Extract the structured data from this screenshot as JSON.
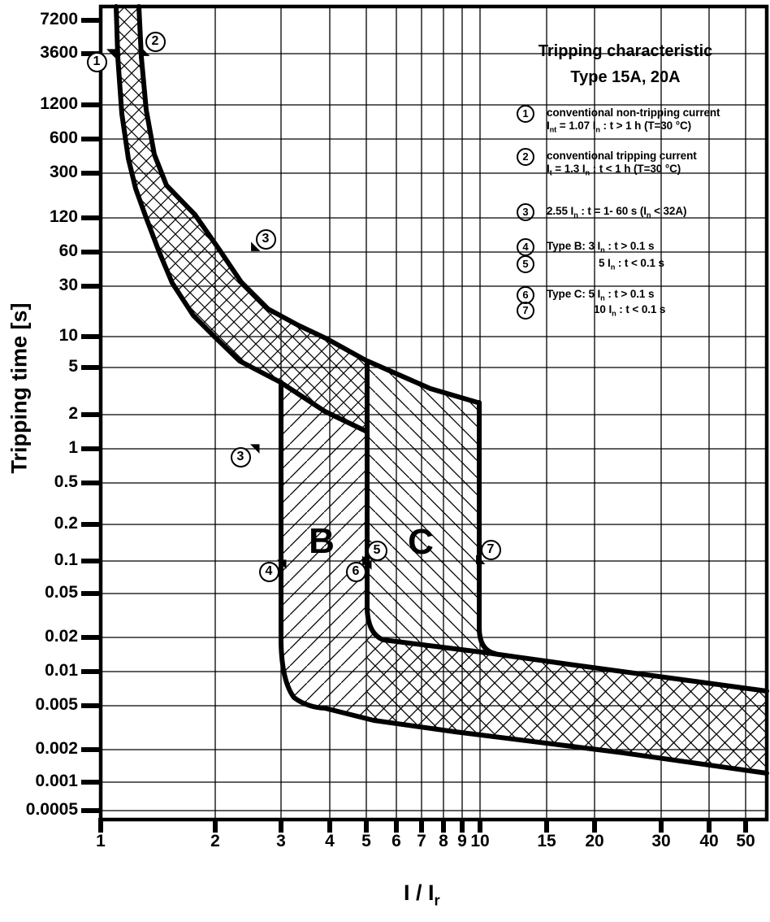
{
  "chart_data": {
    "type": "line",
    "title": "Tripping characteristic",
    "subtitle": "Type 15A, 20A",
    "xlabel": "I / Ir",
    "ylabel": "Tripping time [s]",
    "x_scale": "log",
    "y_scale": "log",
    "xlim": [
      1,
      57
    ],
    "ylim": [
      0.0004,
      9000
    ],
    "grid": true,
    "x_ticks": [
      1,
      2,
      3,
      4,
      5,
      6,
      7,
      8,
      9,
      10,
      15,
      20,
      30,
      40,
      50
    ],
    "y_ticks": [
      7200,
      3600,
      1200,
      600,
      300,
      120,
      60,
      30,
      10,
      5,
      2,
      1,
      0.5,
      0.2,
      0.1,
      0.05,
      0.02,
      0.01,
      0.005,
      0.002,
      0.001,
      0.0005
    ],
    "series": [
      {
        "name": "curve 1 - conventional non-tripping current limit (1.07 In)",
        "points": [
          [
            1.1,
            8800
          ],
          [
            1.14,
            970
          ],
          [
            1.18,
            385
          ],
          [
            1.24,
            207
          ],
          [
            1.32,
            114
          ],
          [
            1.43,
            56
          ],
          [
            1.54,
            30
          ],
          [
            1.75,
            15.4
          ],
          [
            1.99,
            9.9
          ],
          [
            2.32,
            6.1
          ],
          [
            2.97,
            3.9
          ],
          [
            3.89,
            2.15
          ],
          [
            4.97,
            1.44
          ]
        ]
      },
      {
        "name": "curve 2 - conventional tripping current limit (1.3 In)",
        "points": [
          [
            1.26,
            8800
          ],
          [
            1.32,
            1050
          ],
          [
            1.38,
            420
          ],
          [
            1.49,
            223
          ],
          [
            1.77,
            122
          ],
          [
            2.05,
            60
          ],
          [
            2.34,
            31
          ],
          [
            2.76,
            17.7
          ],
          [
            3.31,
            12.7
          ],
          [
            3.95,
            9.5
          ],
          [
            4.97,
            6.2
          ],
          [
            7.37,
            3.44
          ],
          [
            9.79,
            2.59
          ]
        ]
      },
      {
        "name": "Type B lower instantaneous limit (3 In vertical)",
        "points": [
          [
            3,
            3.9
          ],
          [
            3,
            0.02
          ],
          [
            3.2,
            0.007
          ],
          [
            3.89,
            0.0048
          ]
        ]
      },
      {
        "name": "lower limit of instantaneous band",
        "points": [
          [
            3.89,
            0.0048
          ],
          [
            8.5,
            0.003
          ],
          [
            23,
            0.002
          ],
          [
            56,
            0.0013
          ]
        ]
      },
      {
        "name": "Type B upper / Type C lower instantaneous limit (5 In vertical)",
        "points": [
          [
            5,
            6.2
          ],
          [
            5,
            0.028
          ],
          [
            5.5,
            0.0202
          ]
        ]
      },
      {
        "name": "upper limit of instantaneous band",
        "points": [
          [
            5.5,
            0.0202
          ],
          [
            8.5,
            0.0165
          ],
          [
            17,
            0.0121
          ],
          [
            56,
            0.0069
          ]
        ]
      },
      {
        "name": "Type C upper instantaneous limit (10 In vertical)",
        "points": [
          [
            10,
            2.59
          ],
          [
            10,
            0.023
          ]
        ]
      }
    ],
    "regions": [
      {
        "name": "thermal tripping band",
        "hatch": "cross",
        "between": "curve 1 and curve 2"
      },
      {
        "name": "B",
        "hatch": "/",
        "x_range": [
          3,
          5
        ]
      },
      {
        "name": "C",
        "hatch": "\\",
        "x_range": [
          5,
          10
        ]
      },
      {
        "name": "instantaneous tripping band",
        "hatch": "cross",
        "x_range": [
          3.9,
          57
        ]
      }
    ],
    "annotations": [
      {
        "marker": "1",
        "points_to": "curve 1 near top (1.07 In asymptote)"
      },
      {
        "marker": "2",
        "points_to": "curve 2 near top (1.3 In asymptote)"
      },
      {
        "marker": "3",
        "points_to": "2.55 In at 60 s (upper) and 2.55 In at 1 s (lower)"
      },
      {
        "marker": "4",
        "points_to": "3 In at 0.1 s"
      },
      {
        "marker": "5",
        "points_to": "5 In at 0.1 s (Type B)"
      },
      {
        "marker": "6",
        "points_to": "5 In at 0.1 s (Type C)"
      },
      {
        "marker": "7",
        "points_to": "10 In at 0.1 s"
      }
    ]
  },
  "axes": {
    "y_label": "Tripping time [s]",
    "x_label": "I / I~r~"
  },
  "regions_text": {
    "b": "B",
    "c": "C"
  },
  "plot_markers": [
    "1",
    "2",
    "3",
    "3",
    "4",
    "5",
    "6",
    "7"
  ],
  "legend": {
    "title": "Tripping characteristic",
    "subtitle": "Type 15A, 20A",
    "items": [
      {
        "num": "1",
        "line1": "conventional non-tripping current",
        "line2": "I~nt~ = 1.07 I~n~ :  t > 1 h   (T=30 °C)"
      },
      {
        "num": "2",
        "line1": "conventional tripping current",
        "line2": "I~t~ = 1.3 I~n~ :  t < 1 h   (T=30 °C)"
      },
      {
        "num": "3",
        "line1": "2.55 I~n~  : t = 1- 60 s (I~n~ < 32A)"
      },
      {
        "num": "4",
        "line1": "Type B: 3 I~n~ :  t > 0.1 s"
      },
      {
        "num": "5",
        "line1": "5 I~n~ :  t < 0.1 s"
      },
      {
        "num": "6",
        "line1": "Type C: 5 I~n~ : t > 0.1 s"
      },
      {
        "num": "7",
        "line1": "10 I~n~ : t < 0.1 s"
      }
    ]
  }
}
